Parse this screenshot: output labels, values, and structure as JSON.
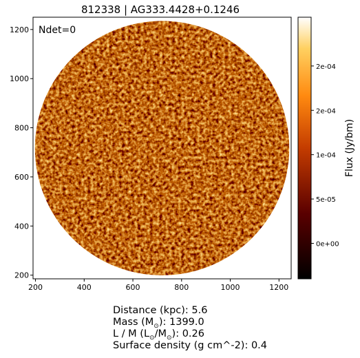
{
  "chart_data": {
    "type": "heatmap",
    "title": "812338 | AG333.4428+0.1246",
    "annotation": "Ndet=0",
    "xlim": [
      190,
      1250
    ],
    "ylim": [
      185,
      1250
    ],
    "x_ticks": [
      200,
      400,
      600,
      800,
      1000,
      1200
    ],
    "y_ticks": [
      200,
      400,
      600,
      800,
      1000,
      1200
    ],
    "image_center": [
      720,
      717
    ],
    "image_radius": 520,
    "colormap": "afmhot",
    "colorbar": {
      "label": "Flux (Jy/bm)",
      "range": [
        -4e-05,
        0.000255
      ],
      "ticks": [
        {
          "value": 0.0,
          "label": "0e+00"
        },
        {
          "value": 5e-05,
          "label": "5e-05"
        },
        {
          "value": 0.0001,
          "label": "1e-04"
        },
        {
          "value": 0.00015,
          "label": "2e-04"
        },
        {
          "value": 0.0002,
          "label": "2e-04"
        }
      ]
    }
  },
  "info": {
    "distance": "Distance (kpc): 5.6",
    "mass_prefix": "Mass (M",
    "mass_suffix": "): 1399.0",
    "lm_prefix": "L / M (L",
    "lm_middle": "/M",
    "lm_suffix": "): 0.26",
    "surface_density": "Surface density (g cm^-2): 0.4",
    "sun_symbol": "⊙"
  }
}
